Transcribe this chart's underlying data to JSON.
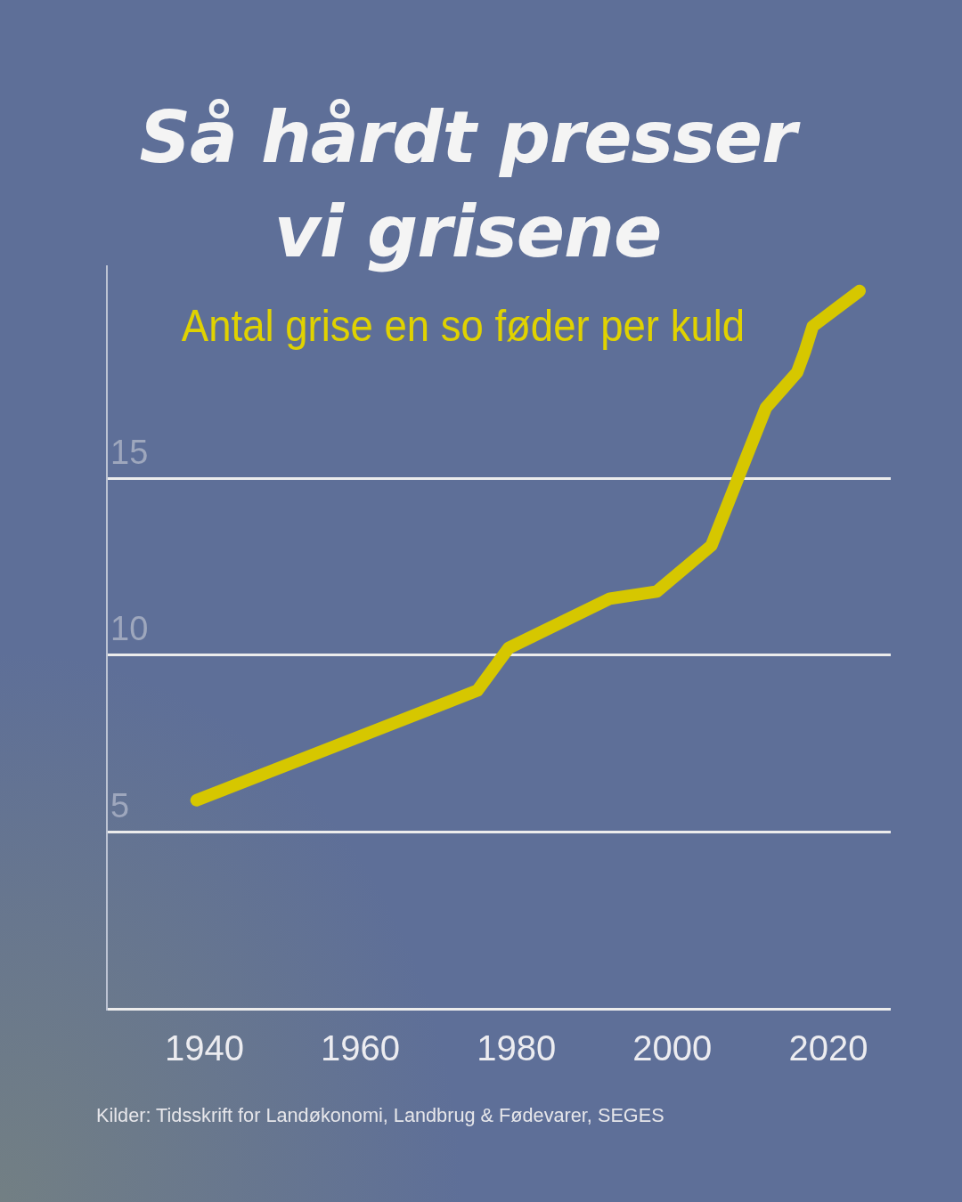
{
  "chart_data": {
    "type": "line",
    "title": "Så hårdt presser vi grisene",
    "subtitle": "Antal grise en so føder per kuld",
    "x": [
      1939,
      1975,
      1979,
      1992,
      1998,
      2005,
      2012,
      2014,
      2016,
      2017,
      2018,
      2021,
      2024
    ],
    "series": [
      {
        "color": "#d6c700",
        "values": [
          5.9,
          9.0,
          10.2,
          11.6,
          11.8,
          13.1,
          17.0,
          17.5,
          18.0,
          18.6,
          19.3,
          19.8,
          20.3
        ]
      }
    ],
    "xlim": [
      1927.5,
      2028
    ],
    "xticks": [
      1940,
      1960,
      1980,
      2000,
      2020
    ],
    "ylim": [
      0,
      21
    ],
    "yticks": [
      {
        "value": 0,
        "label": null
      },
      5,
      10,
      15
    ],
    "grid": "y",
    "legend": false,
    "marker": "none",
    "line_style": "solid",
    "annotations": [
      "Kilder: Tidsskrift for Landøkonomi, Landbrug & Fødevarer, SEGES"
    ]
  }
}
